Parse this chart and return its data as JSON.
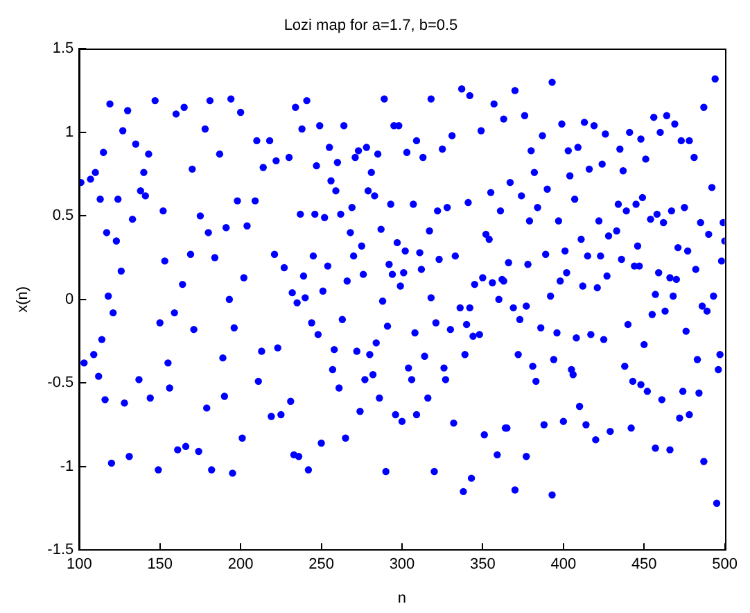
{
  "chart_data": {
    "type": "scatter",
    "title": "Lozi map for a=1.7, b=0.5",
    "xlabel": "n",
    "ylabel": "x(n)",
    "color": "#0000ff",
    "marker": "circle",
    "grid": false,
    "legend": false,
    "xlim": [
      100,
      500
    ],
    "xticks": [
      100,
      150,
      200,
      250,
      300,
      350,
      400,
      450,
      500
    ],
    "ylim": [
      -1.5,
      1.5
    ],
    "yticks": [
      -1.5,
      -1,
      -0.5,
      0,
      0.5,
      1,
      1.5
    ],
    "x": [
      101,
      107,
      110,
      115,
      119,
      113,
      117,
      123,
      118,
      121,
      114,
      103,
      109,
      112,
      116,
      120,
      124,
      126,
      127,
      128,
      130,
      131,
      133,
      135,
      137,
      138,
      140,
      141,
      143,
      144,
      147,
      149,
      150,
      152,
      153,
      155,
      156,
      159,
      160,
      161,
      164,
      165,
      166,
      169,
      170,
      171,
      174,
      175,
      178,
      179,
      180,
      181,
      182,
      184,
      187,
      189,
      190,
      191,
      193,
      194,
      195,
      196,
      198,
      200,
      201,
      202,
      204,
      209,
      210,
      211,
      213,
      214,
      218,
      219,
      221,
      222,
      223,
      225,
      227,
      230,
      231,
      234,
      236,
      237,
      239,
      241,
      238,
      247,
      249,
      255,
      260,
      264,
      271,
      273,
      278,
      285,
      281,
      289,
      295,
      298,
      303,
      309,
      313,
      318,
      325,
      331,
      337,
      342,
      349,
      357,
      363,
      256,
      259,
      279,
      283,
      293,
      307,
      322,
      328,
      341,
      355,
      361,
      246,
      252,
      262,
      269,
      287,
      297,
      302,
      311,
      317,
      323,
      333,
      352,
      354,
      245,
      254,
      268,
      275,
      270,
      276,
      292,
      294,
      301,
      312,
      299,
      266,
      251,
      232,
      235,
      240,
      288,
      318,
      345,
      350,
      356,
      362,
      360,
      244,
      248,
      263,
      291,
      308,
      321,
      330,
      336,
      342,
      340,
      344,
      348,
      258,
      272,
      280,
      284,
      314,
      339,
      257,
      261,
      277,
      282,
      304,
      306,
      326,
      327,
      286,
      316,
      274,
      296,
      300,
      309,
      332,
      265,
      250,
      233,
      242,
      290,
      320,
      343,
      338,
      351,
      359,
      364,
      370,
      376,
      393,
      380,
      387,
      399,
      403,
      409,
      413,
      419,
      426,
      416,
      424,
      435,
      441,
      448,
      456,
      460,
      464,
      469,
      473,
      478,
      481,
      487,
      494,
      492,
      367,
      374,
      382,
      390,
      404,
      407,
      437,
      451,
      379,
      384,
      397,
      411,
      422,
      428,
      433,
      434,
      439,
      445,
      449,
      454,
      458,
      462,
      467,
      475,
      485,
      490,
      499,
      500,
      366,
      378,
      389,
      401,
      415,
      423,
      402,
      398,
      412,
      421,
      427,
      436,
      444,
      447,
      446,
      459,
      466,
      470,
      471,
      477,
      482,
      498,
      363,
      392,
      457,
      468,
      493,
      369,
      377,
      373,
      455,
      463,
      486,
      489,
      386,
      396,
      408,
      417,
      425,
      440,
      450,
      476,
      372,
      394,
      405,
      406,
      438,
      483,
      497,
      496,
      381,
      383,
      443,
      448,
      452,
      461,
      474,
      484,
      410,
      365,
      388,
      400,
      414,
      420,
      429,
      442,
      472,
      478,
      457,
      466,
      377,
      487,
      370,
      393,
      495
    ],
    "values": [
      0.7,
      0.72,
      0.76,
      0.88,
      1.17,
      0.6,
      0.4,
      0.35,
      0.02,
      -0.08,
      -0.24,
      -0.38,
      -0.33,
      -0.46,
      -0.6,
      -0.98,
      0.6,
      0.17,
      1.01,
      -0.62,
      1.13,
      -0.94,
      0.48,
      0.93,
      -0.48,
      0.65,
      0.76,
      0.62,
      0.87,
      -0.59,
      1.19,
      -1.02,
      -0.14,
      0.53,
      0.23,
      -0.38,
      -0.53,
      -0.08,
      1.11,
      -0.9,
      0.09,
      1.15,
      -0.88,
      0.27,
      0.78,
      -0.18,
      -0.91,
      0.5,
      1.02,
      -0.65,
      0.4,
      1.19,
      -1.02,
      0.25,
      0.87,
      -0.35,
      -0.58,
      0.43,
      0.0,
      1.2,
      -1.04,
      -0.17,
      0.59,
      1.12,
      -0.83,
      0.13,
      0.44,
      0.59,
      0.95,
      -0.49,
      -0.31,
      0.79,
      0.95,
      -0.7,
      0.27,
      0.83,
      -0.29,
      -0.69,
      0.19,
      0.85,
      -0.61,
      1.15,
      -0.94,
      0.51,
      0.14,
      1.19,
      1.02,
      0.8,
      1.04,
      0.91,
      0.82,
      1.04,
      0.85,
      0.89,
      0.91,
      0.87,
      0.76,
      1.2,
      1.04,
      1.04,
      0.88,
      0.95,
      0.85,
      1.2,
      0.9,
      0.98,
      1.26,
      1.22,
      1.01,
      1.17,
      1.08,
      0.71,
      0.65,
      0.65,
      0.62,
      0.57,
      0.57,
      0.53,
      0.55,
      0.58,
      0.64,
      0.53,
      0.51,
      0.49,
      0.51,
      0.55,
      0.42,
      0.34,
      0.29,
      0.28,
      0.41,
      0.24,
      0.26,
      0.39,
      0.36,
      0.26,
      0.2,
      0.4,
      0.32,
      0.26,
      0.15,
      0.21,
      0.15,
      0.16,
      0.18,
      0.08,
      0.11,
      0.05,
      0.04,
      -0.02,
      0.01,
      -0.01,
      0.01,
      0.09,
      0.13,
      0.1,
      0.12,
      0.0,
      -0.14,
      -0.21,
      -0.12,
      -0.16,
      -0.2,
      -0.14,
      -0.18,
      -0.05,
      -0.05,
      -0.15,
      -0.22,
      -0.21,
      -0.3,
      -0.31,
      -0.33,
      -0.26,
      -0.34,
      -0.33,
      -0.42,
      -0.53,
      -0.48,
      -0.45,
      -0.41,
      -0.48,
      -0.41,
      -0.48,
      -0.59,
      -0.59,
      -0.67,
      -0.69,
      -0.73,
      -0.69,
      -0.74,
      -0.83,
      -0.86,
      -0.93,
      -1.02,
      -1.03,
      -1.03,
      -1.07,
      -1.15,
      -0.81,
      -0.93,
      -0.77,
      1.25,
      1.1,
      1.3,
      0.89,
      0.98,
      1.05,
      0.89,
      0.91,
      1.06,
      1.04,
      0.99,
      0.78,
      0.81,
      0.9,
      1.0,
      0.96,
      1.09,
      1.0,
      1.1,
      1.05,
      0.95,
      0.95,
      0.85,
      1.15,
      1.32,
      0.67,
      0.7,
      0.62,
      0.76,
      0.66,
      0.74,
      0.6,
      0.77,
      0.84,
      0.47,
      0.55,
      0.47,
      0.36,
      0.47,
      0.38,
      0.41,
      0.57,
      0.53,
      0.57,
      0.61,
      0.48,
      0.51,
      0.46,
      0.53,
      0.55,
      0.46,
      0.39,
      0.46,
      0.35,
      0.22,
      0.21,
      0.27,
      0.29,
      0.26,
      0.26,
      0.16,
      0.11,
      0.08,
      0.07,
      0.14,
      0.24,
      0.2,
      0.2,
      0.32,
      0.16,
      0.13,
      0.12,
      0.31,
      0.29,
      0.18,
      0.23,
      0.11,
      0.02,
      0.03,
      0.02,
      0.02,
      -0.05,
      -0.04,
      -0.12,
      -0.09,
      -0.07,
      -0.04,
      -0.07,
      -0.17,
      -0.2,
      -0.23,
      -0.21,
      -0.24,
      -0.15,
      -0.27,
      -0.19,
      -0.33,
      -0.36,
      -0.42,
      -0.45,
      -0.4,
      -0.36,
      -0.33,
      -0.42,
      -0.4,
      -0.49,
      -0.49,
      -0.51,
      -0.55,
      -0.6,
      -0.55,
      -0.56,
      -0.64,
      -0.77,
      -0.75,
      -0.73,
      -0.75,
      -0.84,
      -0.79,
      -0.77,
      -0.71,
      -0.69,
      -0.89,
      -0.9,
      -0.94,
      -0.97,
      -1.14,
      -1.17,
      -1.22
    ]
  }
}
